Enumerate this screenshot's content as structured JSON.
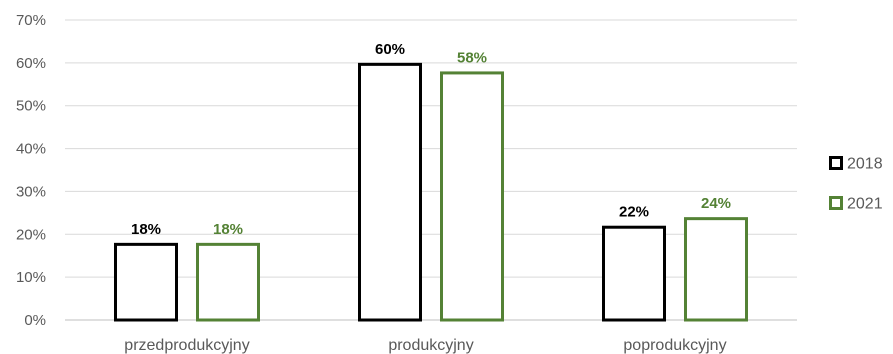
{
  "chart_data": {
    "type": "bar",
    "categories": [
      "przedprodukcyjny",
      "produkcyjny",
      "poprodukcyjny"
    ],
    "series": [
      {
        "name": "2018",
        "values": [
          18,
          60,
          22
        ],
        "labels": [
          "18%",
          "60%",
          "22%"
        ],
        "color": "#000000"
      },
      {
        "name": "2021",
        "values": [
          18,
          58,
          24
        ],
        "labels": [
          "18%",
          "58%",
          "24%"
        ],
        "color": "#548235"
      }
    ],
    "yticks": [
      "0%",
      "10%",
      "20%",
      "30%",
      "40%",
      "50%",
      "60%",
      "70%"
    ],
    "ylim": [
      0,
      70
    ],
    "grid": true,
    "legend": "right",
    "title": "",
    "xlabel": "",
    "ylabel": ""
  }
}
